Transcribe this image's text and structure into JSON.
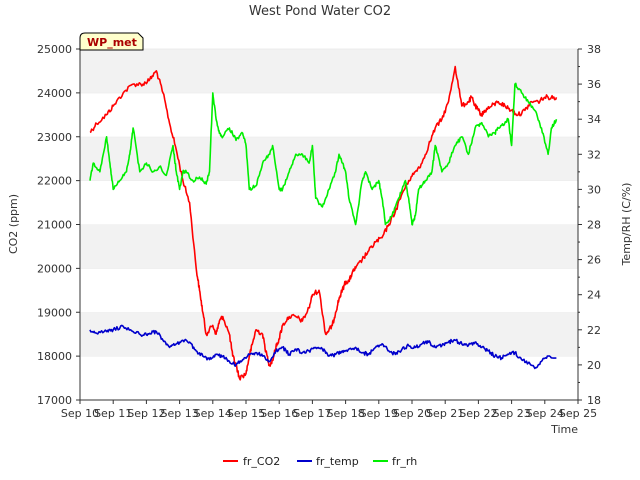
{
  "chart_data": {
    "type": "line",
    "title": "West Pond Water CO2",
    "badge": "WP_met",
    "xlabel": "Time",
    "ylabel_left": "CO2 (ppm)",
    "ylabel_right": "Temp/RH (C/%)",
    "xlim": [
      10,
      25
    ],
    "ylim_left": [
      17000,
      25000
    ],
    "ylim_right": [
      18,
      38
    ],
    "x_ticks": [
      10,
      11,
      12,
      13,
      14,
      15,
      16,
      17,
      18,
      19,
      20,
      21,
      22,
      23,
      24,
      25
    ],
    "x_tick_labels": [
      "Sep 10",
      "Sep 11",
      "Sep 12",
      "Sep 13",
      "Sep 14",
      "Sep 15",
      "Sep 16",
      "Sep 17",
      "Sep 18",
      "Sep 19",
      "Sep 20",
      "Sep 21",
      "Sep 22",
      "Sep 23",
      "Sep 24",
      "Sep 25"
    ],
    "y_left_ticks": [
      17000,
      18000,
      19000,
      20000,
      21000,
      22000,
      23000,
      24000,
      25000
    ],
    "y_left_tick_labels": [
      "17000",
      "18000",
      "19000",
      "20000",
      "21000",
      "22000",
      "23000",
      "24000",
      "25000"
    ],
    "y_right_ticks": [
      18,
      20,
      22,
      24,
      26,
      28,
      30,
      32,
      34,
      36,
      38
    ],
    "y_right_tick_labels": [
      "18",
      "20",
      "22",
      "24",
      "26",
      "28",
      "30",
      "32",
      "34",
      "36",
      "38"
    ],
    "grid": "horizontal bands",
    "legend_position": "bottom-center",
    "series": [
      {
        "name": "fr_CO2",
        "axis": "left",
        "color": "#ff0000",
        "x": [
          10.3,
          10.5,
          10.8,
          11.0,
          11.3,
          11.6,
          11.9,
          12.1,
          12.3,
          12.5,
          12.7,
          12.9,
          13.1,
          13.3,
          13.5,
          13.6,
          13.7,
          13.8,
          14.0,
          14.1,
          14.2,
          14.3,
          14.5,
          14.6,
          14.7,
          14.8,
          15.0,
          15.1,
          15.2,
          15.3,
          15.5,
          15.6,
          15.7,
          15.8,
          15.9,
          16.0,
          16.1,
          16.3,
          16.5,
          16.7,
          16.9,
          17.0,
          17.2,
          17.4,
          17.5,
          17.6,
          17.7,
          17.8,
          17.9,
          18.0,
          18.1,
          18.2,
          18.3,
          18.5,
          18.7,
          18.9,
          19.1,
          19.3,
          19.5,
          19.7,
          19.9,
          20.1,
          20.3,
          20.5,
          20.7,
          20.9,
          21.1,
          21.3,
          21.5,
          21.7,
          21.8,
          21.9,
          22.0,
          22.1,
          22.2,
          22.4,
          22.6,
          22.8,
          23.0,
          23.2,
          23.4,
          23.6,
          23.8,
          24.0,
          24.2,
          24.35
        ],
        "values": [
          23100,
          23300,
          23500,
          23700,
          24000,
          24200,
          24200,
          24300,
          24500,
          24000,
          23300,
          22700,
          22000,
          21500,
          20000,
          19500,
          19000,
          18500,
          18700,
          18500,
          18800,
          18900,
          18500,
          18000,
          17800,
          17500,
          17600,
          18000,
          18300,
          18600,
          18500,
          18100,
          17800,
          17900,
          18200,
          18400,
          18700,
          18900,
          18900,
          18800,
          19100,
          19400,
          19500,
          18500,
          18600,
          18700,
          19000,
          19300,
          19500,
          19700,
          19700,
          19900,
          20000,
          20200,
          20400,
          20600,
          20700,
          21000,
          21300,
          21700,
          22000,
          22200,
          22400,
          22800,
          23200,
          23400,
          23800,
          24600,
          23700,
          23800,
          23900,
          23700,
          23600,
          23500,
          23600,
          23700,
          23800,
          23700,
          23600,
          23500,
          23600,
          23800,
          23800,
          23900,
          23900,
          23900
        ]
      },
      {
        "name": "fr_temp",
        "axis": "right",
        "color": "#0000cc",
        "x": [
          10.3,
          10.5,
          10.8,
          11.0,
          11.3,
          11.6,
          11.9,
          12.1,
          12.3,
          12.5,
          12.7,
          12.9,
          13.1,
          13.3,
          13.5,
          13.7,
          13.9,
          14.1,
          14.3,
          14.5,
          14.7,
          14.9,
          15.1,
          15.3,
          15.5,
          15.7,
          15.9,
          16.1,
          16.3,
          16.5,
          16.7,
          16.9,
          17.1,
          17.3,
          17.5,
          17.7,
          17.9,
          18.1,
          18.3,
          18.5,
          18.7,
          18.9,
          19.1,
          19.3,
          19.5,
          19.7,
          19.9,
          20.1,
          20.3,
          20.5,
          20.7,
          20.9,
          21.1,
          21.3,
          21.5,
          21.7,
          21.9,
          22.1,
          22.3,
          22.5,
          22.7,
          22.9,
          23.1,
          23.3,
          23.5,
          23.7,
          23.9,
          24.1,
          24.35
        ],
        "values": [
          22.0,
          21.8,
          21.9,
          22.0,
          22.2,
          21.9,
          21.7,
          21.8,
          21.9,
          21.4,
          21.0,
          21.2,
          21.4,
          21.3,
          20.8,
          20.5,
          20.3,
          20.6,
          20.5,
          20.2,
          20.0,
          20.3,
          20.6,
          20.7,
          20.5,
          20.2,
          20.8,
          21.0,
          20.6,
          20.9,
          20.7,
          20.8,
          21.0,
          20.9,
          20.5,
          20.6,
          20.8,
          20.9,
          21.0,
          20.7,
          20.6,
          21.0,
          21.2,
          20.8,
          20.6,
          20.9,
          21.1,
          21.0,
          21.2,
          21.3,
          21.0,
          21.1,
          21.3,
          21.4,
          21.2,
          21.1,
          21.3,
          21.0,
          20.8,
          20.5,
          20.4,
          20.6,
          20.7,
          20.3,
          20.1,
          19.8,
          20.2,
          20.5,
          20.4
        ]
      },
      {
        "name": "fr_rh",
        "axis": "right",
        "color": "#00ee00",
        "x": [
          10.3,
          10.4,
          10.6,
          10.8,
          10.9,
          11.0,
          11.2,
          11.4,
          11.5,
          11.6,
          11.8,
          12.0,
          12.2,
          12.4,
          12.6,
          12.8,
          12.9,
          13.0,
          13.1,
          13.2,
          13.4,
          13.6,
          13.8,
          13.9,
          14.0,
          14.1,
          14.2,
          14.3,
          14.5,
          14.7,
          14.9,
          15.0,
          15.1,
          15.3,
          15.5,
          15.7,
          15.8,
          16.0,
          16.1,
          16.3,
          16.5,
          16.7,
          16.9,
          17.0,
          17.1,
          17.3,
          17.5,
          17.7,
          17.8,
          17.9,
          18.0,
          18.1,
          18.3,
          18.5,
          18.6,
          18.8,
          19.0,
          19.1,
          19.2,
          19.4,
          19.6,
          19.8,
          19.9,
          20.0,
          20.1,
          20.2,
          20.4,
          20.6,
          20.7,
          20.9,
          21.1,
          21.3,
          21.5,
          21.7,
          21.9,
          22.1,
          22.3,
          22.5,
          22.6,
          22.8,
          22.9,
          23.0,
          23.1,
          23.3,
          23.5,
          23.7,
          23.9,
          24.1,
          24.2,
          24.35
        ],
        "values": [
          30.5,
          31.5,
          31.0,
          33.0,
          31.5,
          30.0,
          30.5,
          31.0,
          32.0,
          33.5,
          31.0,
          31.5,
          31.0,
          31.3,
          30.8,
          32.5,
          31.0,
          30.0,
          31.0,
          31.0,
          30.5,
          30.7,
          30.3,
          31.0,
          35.5,
          34.0,
          33.2,
          33.0,
          33.5,
          32.8,
          33.2,
          32.5,
          30.0,
          30.2,
          31.5,
          32.0,
          32.5,
          30.0,
          30.0,
          31.0,
          32.0,
          32.0,
          31.5,
          32.5,
          29.5,
          29.0,
          30.0,
          31.0,
          32.0,
          31.5,
          31.0,
          29.5,
          28.0,
          30.5,
          31.0,
          30.0,
          30.5,
          29.5,
          28.0,
          28.5,
          29.5,
          30.5,
          29.5,
          28.0,
          28.5,
          30.0,
          30.5,
          31.0,
          32.5,
          31.0,
          31.5,
          32.5,
          33.0,
          32.0,
          33.5,
          33.8,
          33.0,
          33.2,
          33.5,
          33.8,
          34.0,
          32.5,
          36.0,
          35.5,
          35.0,
          34.5,
          33.5,
          32.0,
          33.5,
          34.0
        ]
      }
    ]
  }
}
